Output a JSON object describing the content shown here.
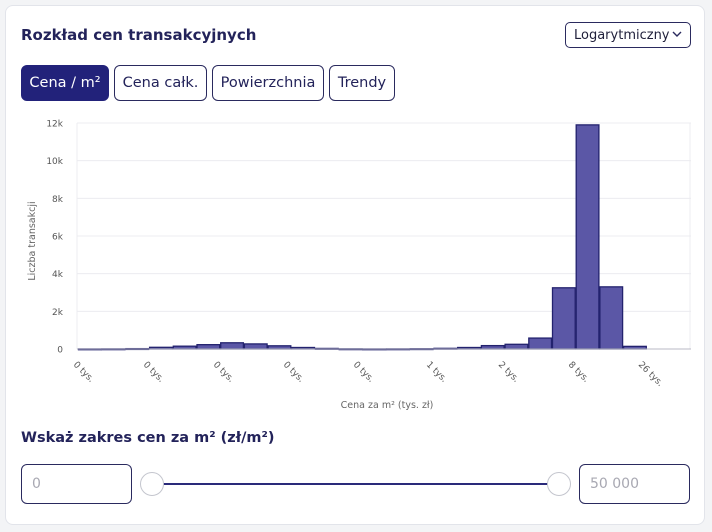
{
  "card": {
    "title": "Rozkład cen transakcyjnych",
    "scale_select": {
      "value": "Logarytmiczny"
    }
  },
  "tabs": [
    {
      "label": "Cena / m²",
      "active": true
    },
    {
      "label": "Cena całk.",
      "active": false
    },
    {
      "label": "Powierzchnia",
      "active": false
    },
    {
      "label": "Trendy",
      "active": false
    }
  ],
  "chart_data": {
    "type": "bar",
    "title": "",
    "xlabel": "Cena za m² (tys. zł)",
    "ylabel": "Liczba transakcji",
    "ylim": [
      0,
      12000
    ],
    "y_ticks": [
      "0",
      "2k",
      "4k",
      "6k",
      "8k",
      "10k",
      "12k"
    ],
    "x_tick_labels": [
      "0 tys.",
      "0 tys.",
      "0 tys.",
      "0 tys.",
      "0 tys.",
      "1 tys.",
      "2 tys.",
      "8 tys.",
      "26 tys."
    ],
    "values": [
      5,
      8,
      20,
      90,
      150,
      230,
      330,
      270,
      170,
      80,
      30,
      10,
      5,
      8,
      15,
      35,
      80,
      180,
      250,
      580,
      3250,
      11900,
      3300,
      140
    ],
    "bar_color": "#5b57a6",
    "bar_stroke": "#23226e",
    "grid": true,
    "legend": "none"
  },
  "range": {
    "title": "Wskaż zakres cen za m² (zł/m²)",
    "min_placeholder": "0",
    "max_placeholder": "50 000",
    "min_value": 0,
    "max_value": 50000
  }
}
